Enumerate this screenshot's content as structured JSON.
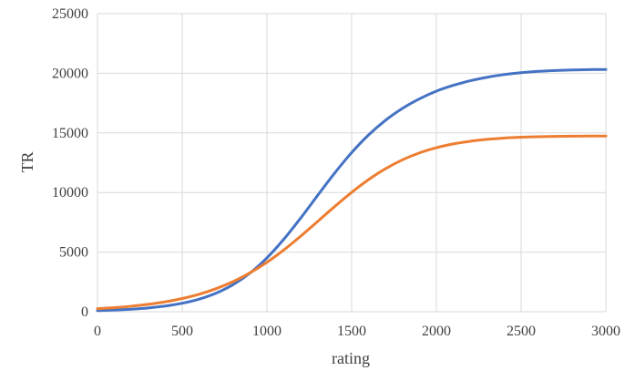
{
  "chart_data": {
    "type": "line",
    "title": "",
    "xlabel": "rating",
    "ylabel": "TR",
    "xlim": [
      0,
      3000
    ],
    "ylim": [
      0,
      25000
    ],
    "x_ticks": [
      "0",
      "500",
      "1000",
      "1500",
      "2000",
      "2500",
      "3000"
    ],
    "y_ticks": [
      "0",
      "5000",
      "10000",
      "15000",
      "20000",
      "25000"
    ],
    "grid": true,
    "legend": "none",
    "x": [
      0,
      100,
      200,
      300,
      400,
      500,
      600,
      700,
      800,
      900,
      1000,
      1100,
      1200,
      1300,
      1400,
      1500,
      1600,
      1700,
      1800,
      1900,
      2000,
      2100,
      2200,
      2300,
      2400,
      2500,
      2600,
      2700,
      2800,
      2900,
      3000
    ],
    "series": [
      {
        "color": "#4472C4",
        "values": [
          93,
          140,
          211,
          317,
          475,
          710,
          1056,
          1558,
          2270,
          3246,
          4520,
          6086,
          7874,
          9770,
          11636,
          13349,
          14832,
          16063,
          17058,
          17856,
          18500,
          18990,
          19374,
          19670,
          19892,
          20052,
          20162,
          20234,
          20281,
          20308,
          20322
        ]
      },
      {
        "color": "#ED7D31",
        "values": [
          256,
          345,
          463,
          621,
          831,
          1108,
          1468,
          1934,
          2526,
          3262,
          4150,
          5187,
          6348,
          7582,
          8826,
          10013,
          11085,
          12000,
          12743,
          13321,
          13755,
          14074,
          14300,
          14457,
          14565,
          14636,
          14680,
          14708,
          14724,
          14733,
          14738
        ]
      }
    ]
  }
}
